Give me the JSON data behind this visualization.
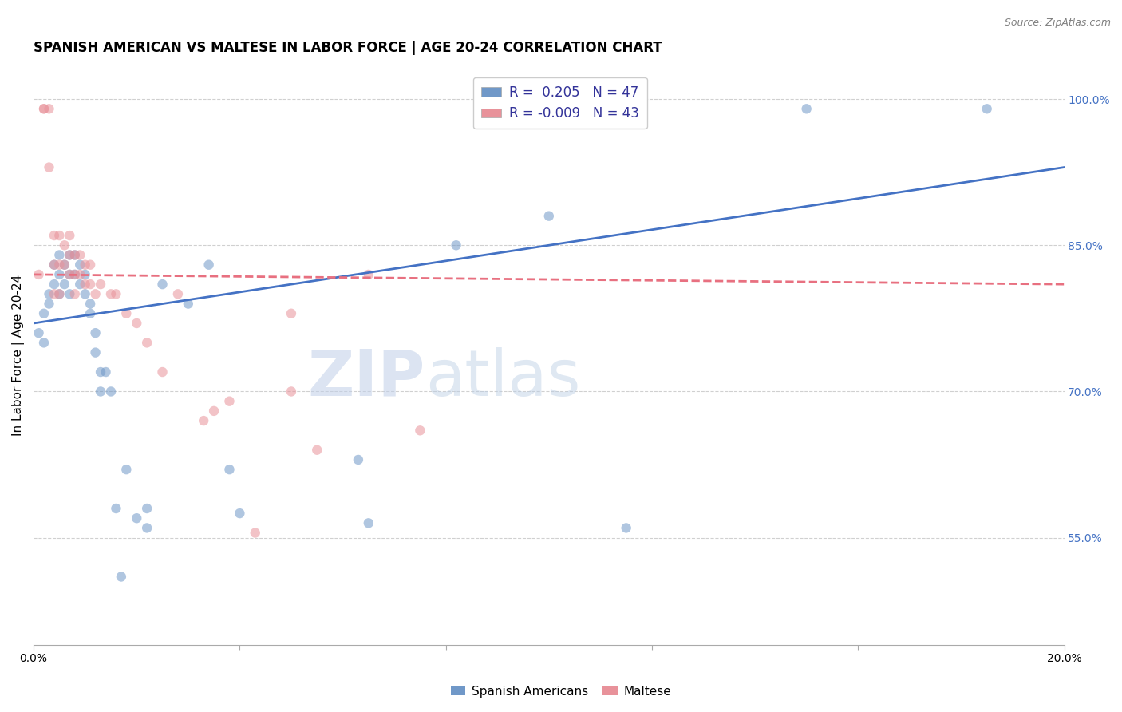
{
  "title": "SPANISH AMERICAN VS MALTESE IN LABOR FORCE | AGE 20-24 CORRELATION CHART",
  "source": "Source: ZipAtlas.com",
  "ylabel": "In Labor Force | Age 20-24",
  "xlim": [
    0.0,
    0.2
  ],
  "ylim": [
    0.44,
    1.035
  ],
  "xticks": [
    0.0,
    0.04,
    0.08,
    0.12,
    0.16,
    0.2
  ],
  "xticklabels": [
    "0.0%",
    "",
    "",
    "",
    "",
    "20.0%"
  ],
  "ytick_right": [
    0.55,
    0.7,
    0.85,
    1.0
  ],
  "ytick_right_labels": [
    "55.0%",
    "70.0%",
    "85.0%",
    "100.0%"
  ],
  "legend_blue_label": "R =  0.205   N = 47",
  "legend_pink_label": "R = -0.009   N = 43",
  "legend_bottom_blue": "Spanish Americans",
  "legend_bottom_pink": "Maltese",
  "blue_color": "#7098c8",
  "pink_color": "#e8929a",
  "blue_line_color": "#4472c4",
  "pink_line_color": "#e87080",
  "watermark_zip": "ZIP",
  "watermark_atlas": "atlas",
  "blue_R": 0.205,
  "pink_R": -0.009,
  "blue_N": 47,
  "pink_N": 43,
  "blue_scatter_x": [
    0.001,
    0.002,
    0.002,
    0.003,
    0.003,
    0.004,
    0.004,
    0.005,
    0.005,
    0.005,
    0.006,
    0.006,
    0.007,
    0.007,
    0.007,
    0.008,
    0.008,
    0.009,
    0.009,
    0.01,
    0.01,
    0.011,
    0.011,
    0.012,
    0.012,
    0.013,
    0.013,
    0.014,
    0.015,
    0.016,
    0.017,
    0.018,
    0.02,
    0.022,
    0.022,
    0.025,
    0.03,
    0.034,
    0.038,
    0.04,
    0.063,
    0.065,
    0.082,
    0.1,
    0.115,
    0.15,
    0.185
  ],
  "blue_scatter_y": [
    0.76,
    0.78,
    0.75,
    0.8,
    0.79,
    0.83,
    0.81,
    0.84,
    0.82,
    0.8,
    0.83,
    0.81,
    0.84,
    0.82,
    0.8,
    0.84,
    0.82,
    0.83,
    0.81,
    0.82,
    0.8,
    0.79,
    0.78,
    0.76,
    0.74,
    0.72,
    0.7,
    0.72,
    0.7,
    0.58,
    0.51,
    0.62,
    0.57,
    0.58,
    0.56,
    0.81,
    0.79,
    0.83,
    0.62,
    0.575,
    0.63,
    0.565,
    0.85,
    0.88,
    0.56,
    0.99,
    0.99
  ],
  "pink_scatter_x": [
    0.001,
    0.002,
    0.002,
    0.003,
    0.003,
    0.004,
    0.004,
    0.004,
    0.005,
    0.005,
    0.005,
    0.006,
    0.006,
    0.007,
    0.007,
    0.007,
    0.008,
    0.008,
    0.008,
    0.009,
    0.009,
    0.01,
    0.01,
    0.011,
    0.011,
    0.012,
    0.013,
    0.015,
    0.016,
    0.018,
    0.02,
    0.022,
    0.025,
    0.028,
    0.033,
    0.035,
    0.038,
    0.043,
    0.05,
    0.05,
    0.055,
    0.065,
    0.075
  ],
  "pink_scatter_y": [
    0.82,
    0.99,
    0.99,
    0.99,
    0.93,
    0.86,
    0.83,
    0.8,
    0.86,
    0.83,
    0.8,
    0.85,
    0.83,
    0.86,
    0.84,
    0.82,
    0.84,
    0.82,
    0.8,
    0.84,
    0.82,
    0.83,
    0.81,
    0.83,
    0.81,
    0.8,
    0.81,
    0.8,
    0.8,
    0.78,
    0.77,
    0.75,
    0.72,
    0.8,
    0.67,
    0.68,
    0.69,
    0.555,
    0.78,
    0.7,
    0.64,
    0.82,
    0.66
  ],
  "blue_line_x": [
    0.0,
    0.2
  ],
  "blue_line_y": [
    0.77,
    0.93
  ],
  "pink_line_x": [
    0.0,
    0.2
  ],
  "pink_line_y": [
    0.82,
    0.81
  ],
  "grid_color": "#d0d0d0",
  "bg_color": "#ffffff",
  "title_fontsize": 12,
  "axis_label_fontsize": 11,
  "tick_fontsize": 10,
  "scatter_size": 80,
  "scatter_alpha": 0.55,
  "line_width": 2.0
}
